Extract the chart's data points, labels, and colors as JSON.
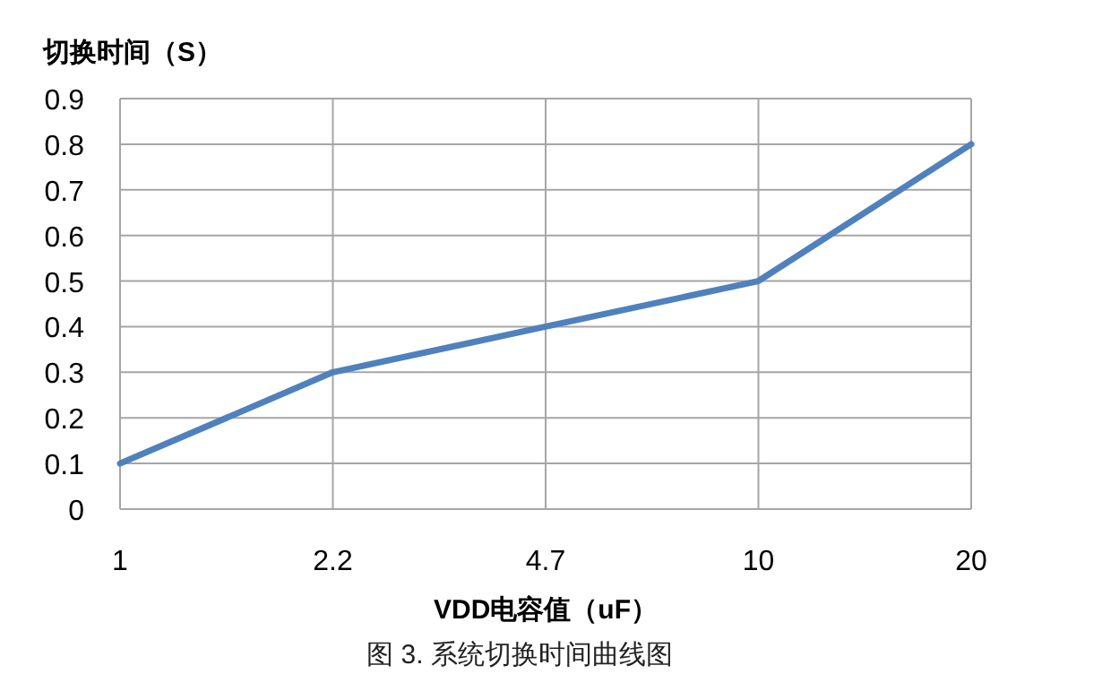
{
  "chart_data": {
    "type": "line",
    "ylabel": "切换时间（S）",
    "xlabel": "VDD电容值（uF）",
    "categories": [
      "1",
      "2.2",
      "4.7",
      "10",
      "20"
    ],
    "series": [
      {
        "color": "#4f81bd",
        "values": [
          0.1,
          0.3,
          0.4,
          0.5,
          0.8
        ]
      }
    ],
    "ylim": [
      0,
      0.9
    ],
    "yticks": [
      0,
      0.1,
      0.2,
      0.3,
      0.4,
      0.5,
      0.6,
      0.7,
      0.8,
      0.9
    ],
    "grid": true,
    "marker": "none",
    "line_style": "solid",
    "annotations": [
      "图 3. 系统切换时间曲线图"
    ]
  }
}
